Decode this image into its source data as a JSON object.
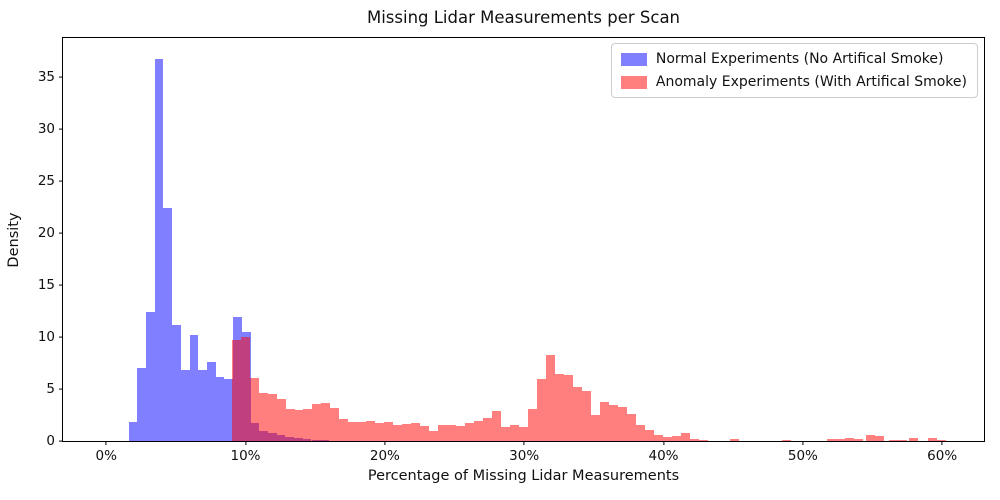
{
  "title": "Missing Lidar Measurements per Scan",
  "axes": {
    "xlabel": "Percentage of Missing Lidar Measurements",
    "ylabel": "Density",
    "x_ticks": [
      {
        "percent": 0,
        "label": "0%"
      },
      {
        "percent": 10,
        "label": "10%"
      },
      {
        "percent": 20,
        "label": "20%"
      },
      {
        "percent": 30,
        "label": "30%"
      },
      {
        "percent": 40,
        "label": "40%"
      },
      {
        "percent": 50,
        "label": "50%"
      },
      {
        "percent": 60,
        "label": "60%"
      }
    ],
    "y_ticks": [
      {
        "value": 0,
        "label": "0"
      },
      {
        "value": 5,
        "label": "5"
      },
      {
        "value": 10,
        "label": "10"
      },
      {
        "value": 15,
        "label": "15"
      },
      {
        "value": 20,
        "label": "20"
      },
      {
        "value": 25,
        "label": "25"
      },
      {
        "value": 30,
        "label": "30"
      },
      {
        "value": 35,
        "label": "35"
      }
    ]
  },
  "legend": {
    "entries": [
      {
        "label": "Normal Experiments (No Artifical Smoke)",
        "color": "rgba(0,0,255,0.5)"
      },
      {
        "label": "Anomaly Experiments (With Artifical Smoke)",
        "color": "rgba(255,0,0,0.5)"
      }
    ]
  },
  "chart_data": {
    "type": "bar",
    "subtype": "overlapping-density-histogram",
    "title": "Missing Lidar Measurements per Scan",
    "xlabel": "Percentage of Missing Lidar Measurements",
    "ylabel": "Density",
    "xlim_percent": [
      -3.1,
      63.0
    ],
    "ylim": [
      0,
      38.8
    ],
    "grid": false,
    "legend_position": "upper-right",
    "series": [
      {
        "name": "normal-experiments",
        "legend_label": "Normal Experiments (No Artifical Smoke)",
        "color": "rgba(0,0,255,0.5)",
        "bin_start_percent": 1.61,
        "bin_width_percent": 0.625,
        "densities": [
          1.85,
          7.0,
          12.4,
          36.8,
          22.4,
          11.2,
          6.8,
          10.2,
          6.8,
          7.6,
          6.2,
          6.0,
          11.9,
          10.5,
          1.7,
          0.95,
          0.75,
          0.55,
          0.4,
          0.3,
          0.2,
          0.12,
          0.08
        ],
        "extra_bars": []
      },
      {
        "name": "anomaly-experiments",
        "legend_label": "Anomaly Experiments (With Artifical Smoke)",
        "color": "rgba(255,0,0,0.5)",
        "bin_start_percent": 9.0,
        "bin_width_percent": 0.645,
        "densities": [
          9.7,
          10.0,
          6.05,
          4.65,
          4.5,
          4.0,
          3.1,
          2.95,
          3.1,
          3.6,
          3.65,
          3.2,
          2.15,
          1.85,
          1.8,
          1.95,
          1.7,
          1.85,
          1.55,
          1.65,
          1.75,
          1.4,
          1.0,
          1.5,
          1.55,
          1.45,
          1.75,
          1.95,
          2.2,
          2.9,
          1.35,
          1.55,
          1.35,
          3.05,
          6.0,
          8.3,
          6.5,
          6.4,
          5.2,
          4.8,
          2.5,
          3.8,
          3.5,
          3.3,
          2.6,
          1.55,
          1.05,
          0.6,
          0.35,
          0.5,
          0.75,
          0.2,
          0.07
        ],
        "extra_bars": [
          {
            "percent": 44.8,
            "density": 0.15
          },
          {
            "percent": 48.5,
            "density": 0.13
          },
          {
            "percent": 51.7,
            "density": 0.2
          },
          {
            "percent": 52.35,
            "density": 0.2
          },
          {
            "percent": 53.0,
            "density": 0.27
          },
          {
            "percent": 53.65,
            "density": 0.2
          },
          {
            "percent": 54.5,
            "density": 0.55
          },
          {
            "percent": 55.15,
            "density": 0.45
          },
          {
            "percent": 56.2,
            "density": 0.13
          },
          {
            "percent": 56.85,
            "density": 0.13
          },
          {
            "percent": 57.6,
            "density": 0.3
          },
          {
            "percent": 59.0,
            "density": 0.25
          },
          {
            "percent": 59.65,
            "density": 0.1
          }
        ]
      }
    ]
  }
}
